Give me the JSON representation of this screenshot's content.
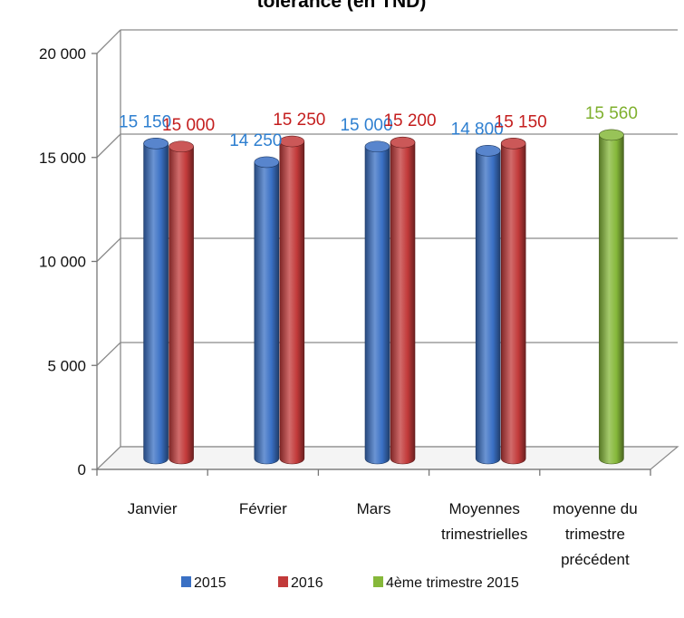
{
  "chart_data": {
    "type": "bar",
    "title": "tolérance (en TND)",
    "y_ticks": [
      "0",
      "5 000",
      "10 000",
      "15 000",
      "20 000"
    ],
    "ylim": [
      0,
      20000
    ],
    "grid": true,
    "legend_position": "bottom",
    "categories": [
      "Janvier",
      "Février",
      "Mars",
      "Moyennes trimestrielles",
      "moyenne du trimestre précédent"
    ],
    "series": [
      {
        "name": "2015",
        "color": "#3a70c4",
        "values": [
          15150,
          14250,
          15000,
          14800,
          null
        ],
        "labels": [
          "15 150",
          "14 250",
          "15 000",
          "14 800",
          ""
        ]
      },
      {
        "name": "2016",
        "color": "#c23a3a",
        "values": [
          15000,
          15250,
          15200,
          15150,
          null
        ],
        "labels": [
          "15 000",
          "15 250",
          "15 200",
          "15 150",
          ""
        ]
      },
      {
        "name": "4ème trimestre 2015",
        "color": "#86b83a",
        "values": [
          null,
          null,
          null,
          null,
          15560
        ],
        "labels": [
          "",
          "",
          "",
          "",
          "15 560"
        ]
      }
    ]
  }
}
